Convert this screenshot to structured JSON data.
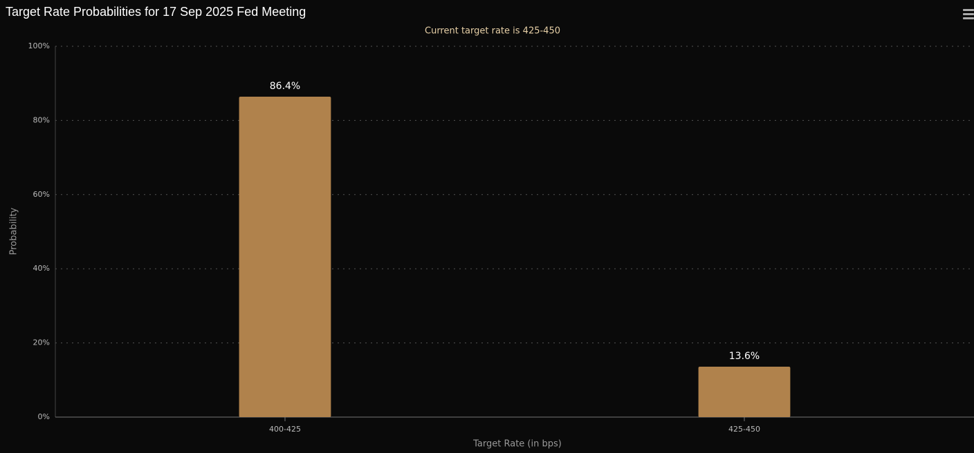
{
  "chart_data": {
    "type": "bar",
    "title": "Target Rate Probabilities for 17 Sep 2025 Fed Meeting",
    "subtitle": "Current target rate is 425-450",
    "x_label": "Target Rate (in bps)",
    "y_label": "Probability",
    "categories": [
      "400-425",
      "425-450"
    ],
    "values": [
      86.4,
      13.6
    ],
    "value_labels": [
      "86.4%",
      "13.6%"
    ],
    "color": "#b0824c",
    "ylim": [
      0,
      100
    ],
    "yticks": [
      {
        "value": 0,
        "label": "0%"
      },
      {
        "value": 20,
        "label": "20%"
      },
      {
        "value": 40,
        "label": "40%"
      },
      {
        "value": 60,
        "label": "60%"
      },
      {
        "value": 80,
        "label": "80%"
      },
      {
        "value": 100,
        "label": "100%"
      }
    ],
    "grid": true
  }
}
